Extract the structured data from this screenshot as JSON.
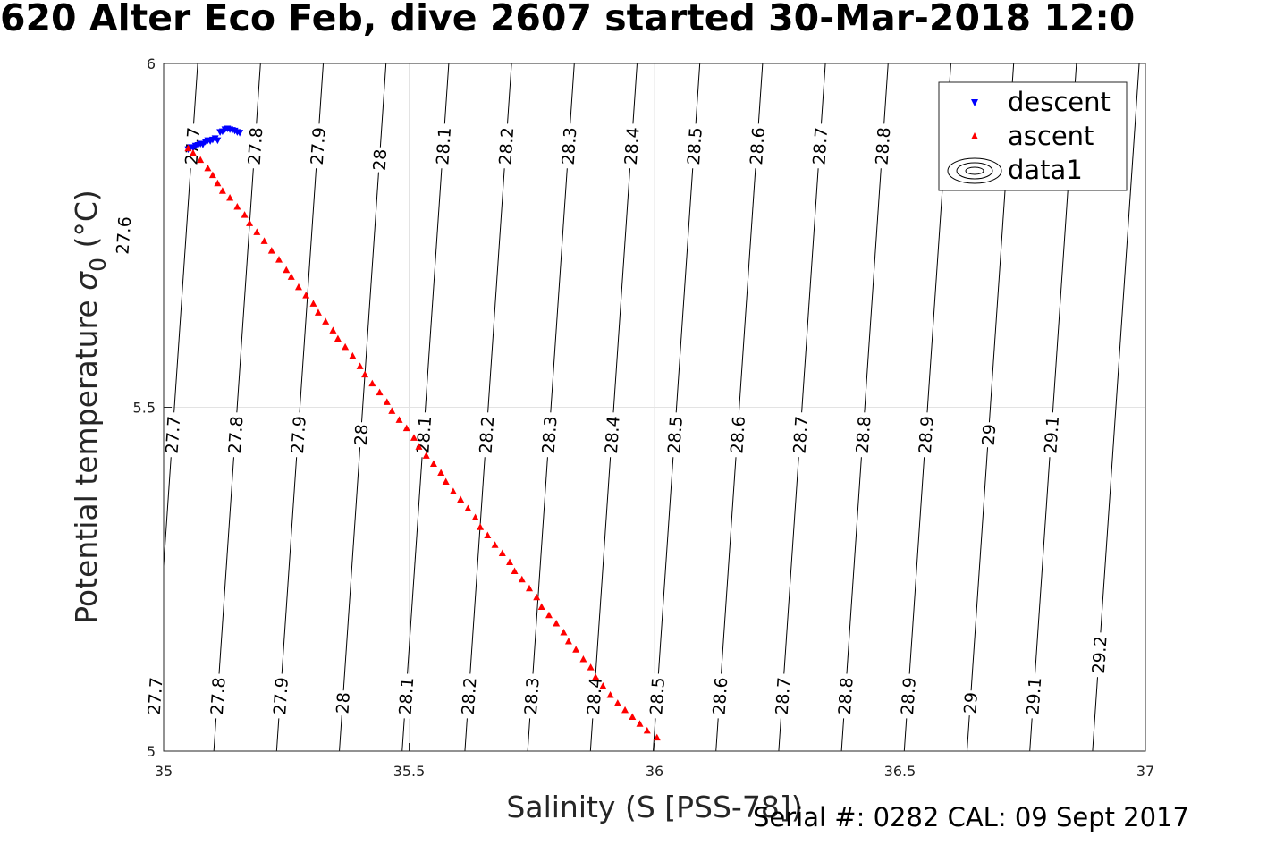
{
  "title": "620 Alter Eco Feb, dive 2607 started 30-Mar-2018 12:0",
  "footer": "Serial #: 0282  CAL: 09 Sept 2017",
  "chart_data": {
    "type": "scatter",
    "xlabel": "Salinity (S [PSS-78])",
    "ylabel_main": "Potential temperature ",
    "ylabel_sigma": "σ",
    "ylabel_sub": "0",
    "ylabel_unit": " (°C)",
    "xlim": [
      35,
      37
    ],
    "ylim": [
      5,
      6
    ],
    "xticks": [
      35,
      35.5,
      36,
      36.5,
      37
    ],
    "yticks": [
      5,
      5.5,
      6
    ],
    "grid": true,
    "legend": {
      "position": "top-right",
      "entries": [
        "descent",
        "ascent",
        "data1"
      ]
    },
    "contour_levels": [
      27.6,
      27.7,
      27.8,
      27.9,
      28,
      28.1,
      28.2,
      28.3,
      28.4,
      28.5,
      28.6,
      28.7,
      28.8,
      28.9,
      29,
      29.1,
      29.2
    ],
    "contour_labels": [
      {
        "text": "27.6",
        "level": 27.6,
        "y": 5.75
      },
      {
        "text": "27.7",
        "level": 27.7,
        "y": 5.88
      },
      {
        "text": "27.8",
        "level": 27.8,
        "y": 5.88
      },
      {
        "text": "27.9",
        "level": 27.9,
        "y": 5.88
      },
      {
        "text": "28",
        "level": 28.0,
        "y": 5.86
      },
      {
        "text": "28.1",
        "level": 28.1,
        "y": 5.88
      },
      {
        "text": "28.2",
        "level": 28.2,
        "y": 5.88
      },
      {
        "text": "28.3",
        "level": 28.3,
        "y": 5.88
      },
      {
        "text": "28.4",
        "level": 28.4,
        "y": 5.88
      },
      {
        "text": "28.5",
        "level": 28.5,
        "y": 5.88
      },
      {
        "text": "28.6",
        "level": 28.6,
        "y": 5.88
      },
      {
        "text": "28.7",
        "level": 28.7,
        "y": 5.88
      },
      {
        "text": "28.8",
        "level": 28.8,
        "y": 5.88
      },
      {
        "text": "27.7",
        "level": 27.7,
        "y": 5.46
      },
      {
        "text": "27.8",
        "level": 27.8,
        "y": 5.46
      },
      {
        "text": "27.9",
        "level": 27.9,
        "y": 5.46
      },
      {
        "text": "28",
        "level": 28.0,
        "y": 5.46
      },
      {
        "text": "28.1",
        "level": 28.1,
        "y": 5.46
      },
      {
        "text": "28.2",
        "level": 28.2,
        "y": 5.46
      },
      {
        "text": "28.3",
        "level": 28.3,
        "y": 5.46
      },
      {
        "text": "28.4",
        "level": 28.4,
        "y": 5.46
      },
      {
        "text": "28.5",
        "level": 28.5,
        "y": 5.46
      },
      {
        "text": "28.6",
        "level": 28.6,
        "y": 5.46
      },
      {
        "text": "28.7",
        "level": 28.7,
        "y": 5.46
      },
      {
        "text": "28.8",
        "level": 28.8,
        "y": 5.46
      },
      {
        "text": "28.9",
        "level": 28.9,
        "y": 5.46
      },
      {
        "text": "29",
        "level": 29.0,
        "y": 5.46
      },
      {
        "text": "29.1",
        "level": 29.1,
        "y": 5.46
      },
      {
        "text": "27.7",
        "level": 27.7,
        "y": 5.08
      },
      {
        "text": "27.8",
        "level": 27.8,
        "y": 5.08
      },
      {
        "text": "27.9",
        "level": 27.9,
        "y": 5.08
      },
      {
        "text": "28",
        "level": 28.0,
        "y": 5.07
      },
      {
        "text": "28.1",
        "level": 28.1,
        "y": 5.08
      },
      {
        "text": "28.2",
        "level": 28.2,
        "y": 5.08
      },
      {
        "text": "28.3",
        "level": 28.3,
        "y": 5.08
      },
      {
        "text": "28.4",
        "level": 28.4,
        "y": 5.08
      },
      {
        "text": "28.5",
        "level": 28.5,
        "y": 5.08
      },
      {
        "text": "28.6",
        "level": 28.6,
        "y": 5.08
      },
      {
        "text": "28.7",
        "level": 28.7,
        "y": 5.08
      },
      {
        "text": "28.8",
        "level": 28.8,
        "y": 5.08
      },
      {
        "text": "28.9",
        "level": 28.9,
        "y": 5.08
      },
      {
        "text": "29",
        "level": 29.0,
        "y": 5.07
      },
      {
        "text": "29.1",
        "level": 29.1,
        "y": 5.08
      },
      {
        "text": "29.2",
        "level": 29.2,
        "y": 5.14
      }
    ],
    "series": [
      {
        "name": "descent",
        "color": "#0000ff",
        "marker": "triangle-down",
        "x": [
          35.05,
          35.055,
          35.06,
          35.065,
          35.07,
          35.075,
          35.08,
          35.085,
          35.09,
          35.095,
          35.1,
          35.105,
          35.11,
          35.115,
          35.12,
          35.125,
          35.13,
          35.135,
          35.14,
          35.145,
          35.15,
          35.155
        ],
        "y": [
          5.875,
          5.878,
          5.877,
          5.88,
          5.881,
          5.883,
          5.882,
          5.886,
          5.888,
          5.887,
          5.889,
          5.891,
          5.888,
          5.9,
          5.901,
          5.904,
          5.905,
          5.904,
          5.903,
          5.902,
          5.9,
          5.899
        ]
      },
      {
        "name": "ascent",
        "color": "#ff0000",
        "marker": "triangle-up",
        "x": [
          35.05,
          35.06,
          35.075,
          35.09,
          35.1,
          35.11,
          35.12,
          35.135,
          35.15,
          35.165,
          35.175,
          35.19,
          35.205,
          35.22,
          35.235,
          35.25,
          35.26,
          35.275,
          35.29,
          35.305,
          35.315,
          35.33,
          35.345,
          35.355,
          35.37,
          35.385,
          35.4,
          35.41,
          35.425,
          35.44,
          35.455,
          35.465,
          35.48,
          35.495,
          35.51,
          35.52,
          35.535,
          35.55,
          35.565,
          35.575,
          35.59,
          35.605,
          35.62,
          35.635,
          35.645,
          35.66,
          35.675,
          35.69,
          35.705,
          35.715,
          35.73,
          35.745,
          35.76,
          35.77,
          35.785,
          35.8,
          35.815,
          35.825,
          35.84,
          35.855,
          35.87,
          35.88,
          35.895,
          35.91,
          35.925,
          35.94,
          35.955,
          35.97,
          35.985,
          36.005
        ],
        "y": [
          5.877,
          5.87,
          5.86,
          5.848,
          5.838,
          5.826,
          5.815,
          5.805,
          5.792,
          5.78,
          5.768,
          5.755,
          5.742,
          5.728,
          5.715,
          5.7,
          5.69,
          5.675,
          5.663,
          5.651,
          5.638,
          5.625,
          5.612,
          5.6,
          5.588,
          5.575,
          5.56,
          5.548,
          5.535,
          5.522,
          5.508,
          5.495,
          5.482,
          5.47,
          5.456,
          5.443,
          5.43,
          5.418,
          5.405,
          5.392,
          5.378,
          5.366,
          5.353,
          5.34,
          5.326,
          5.314,
          5.3,
          5.288,
          5.275,
          5.262,
          5.25,
          5.237,
          5.224,
          5.21,
          5.198,
          5.186,
          5.173,
          5.16,
          5.148,
          5.134,
          5.122,
          5.108,
          5.095,
          5.082,
          5.07,
          5.06,
          5.05,
          5.04,
          5.03,
          5.02
        ]
      }
    ]
  }
}
